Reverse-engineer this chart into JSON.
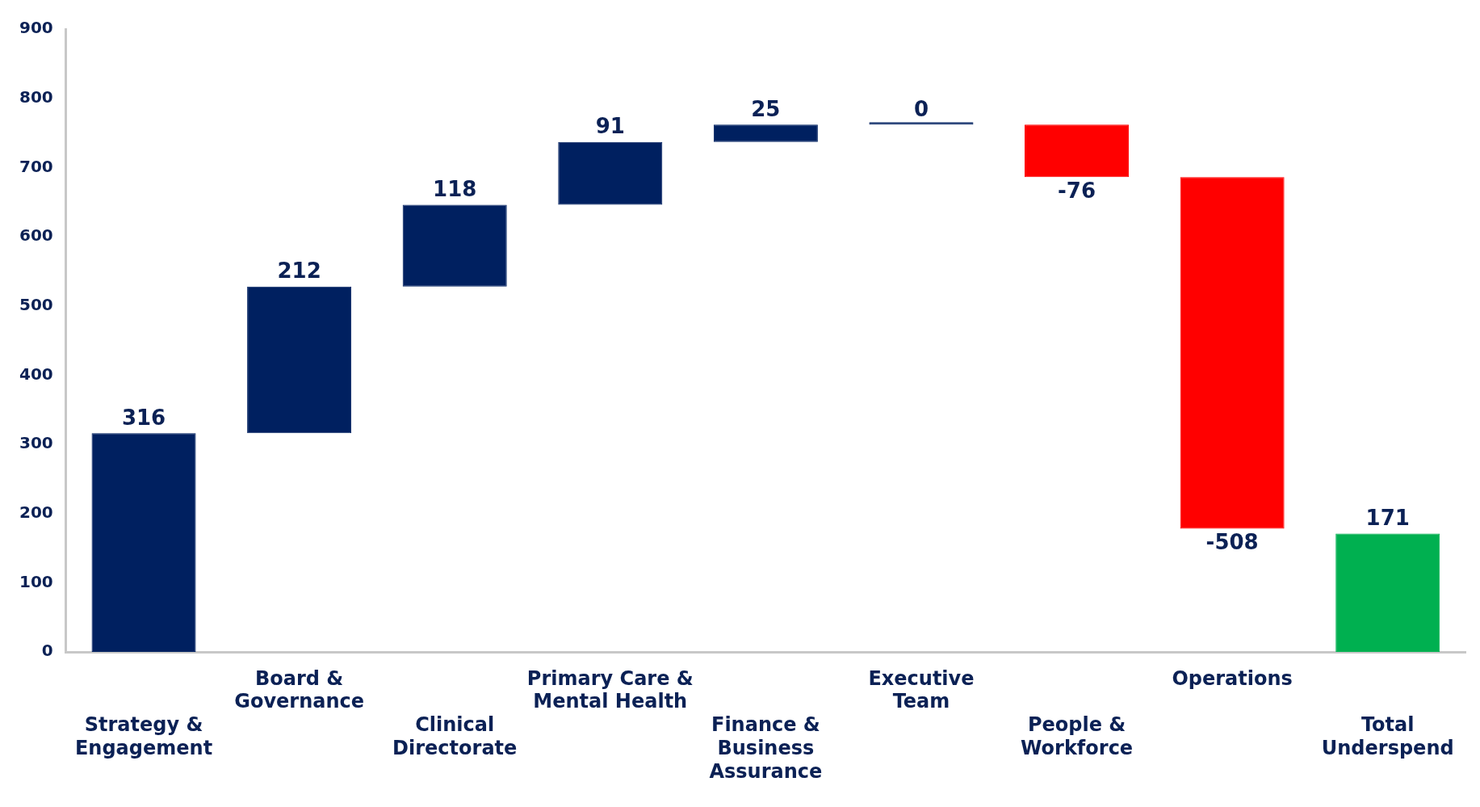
{
  "chart_data": {
    "type": "bar",
    "categories": [
      "Strategy & Engagement",
      "Board & Governance",
      "Clinical Directorate",
      "Primary Care & Mental Health",
      "Finance & Business Assurance",
      "Executive Team",
      "People & Workforce",
      "Operations",
      "Total Underspend"
    ],
    "values": [
      316,
      212,
      118,
      91,
      25,
      0,
      -76,
      -508,
      171
    ],
    "base": [
      0,
      316,
      528,
      646,
      737,
      762,
      762,
      686,
      0
    ],
    "colors": [
      "#002060",
      "#002060",
      "#002060",
      "#002060",
      "#002060",
      "#002060",
      "#ff0000",
      "#ff0000",
      "#00b050"
    ],
    "ylim": [
      0,
      900
    ],
    "yticks": [
      0,
      100,
      200,
      300,
      400,
      500,
      600,
      700,
      800,
      900
    ],
    "data_labels": true,
    "grid": false,
    "legend": false
  }
}
